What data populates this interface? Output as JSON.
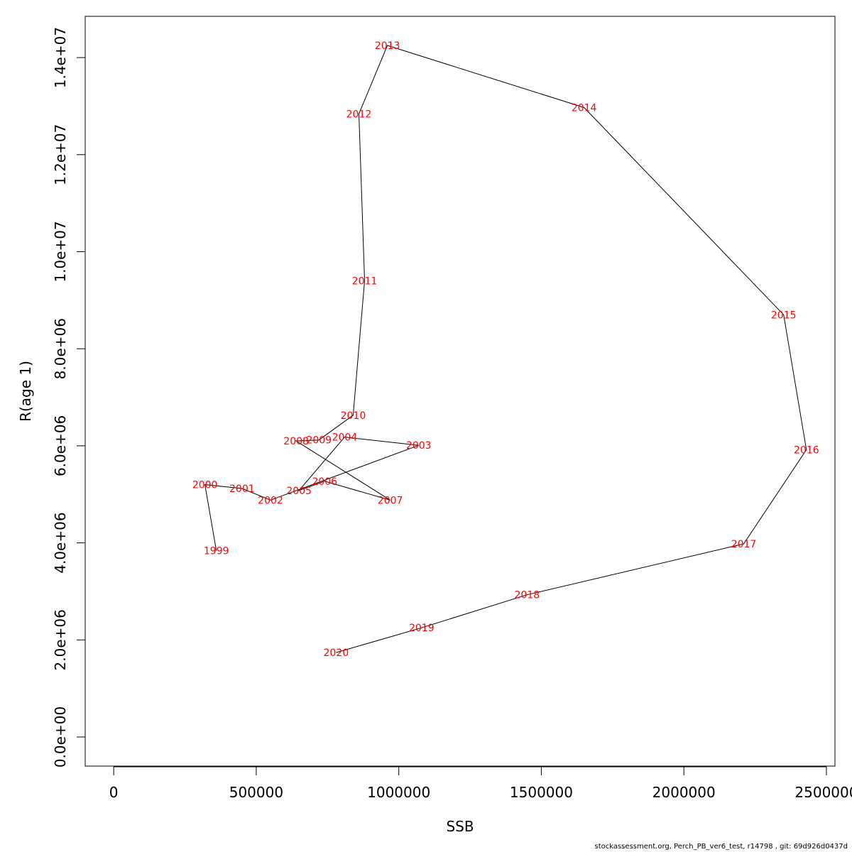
{
  "chart_data": {
    "type": "line",
    "xlabel": "SSB",
    "ylabel": "R(age 1)",
    "xlim": [
      -100000,
      2530000
    ],
    "ylim": [
      -600000,
      14850000
    ],
    "xticks": [
      {
        "value": 0,
        "label": "0"
      },
      {
        "value": 500000,
        "label": "500000"
      },
      {
        "value": 1000000,
        "label": "1000000"
      },
      {
        "value": 1500000,
        "label": "1500000"
      },
      {
        "value": 2000000,
        "label": "2000000"
      },
      {
        "value": 2500000,
        "label": "2500000"
      }
    ],
    "yticks": [
      {
        "value": 0,
        "label": "0.0e+00"
      },
      {
        "value": 2000000,
        "label": "2.0e+06"
      },
      {
        "value": 4000000,
        "label": "4.0e+06"
      },
      {
        "value": 6000000,
        "label": "6.0e+06"
      },
      {
        "value": 8000000,
        "label": "8.0e+06"
      },
      {
        "value": 10000000,
        "label": "1.0e+07"
      },
      {
        "value": 12000000,
        "label": "1.2e+07"
      },
      {
        "value": 14000000,
        "label": "1.4e+07"
      }
    ],
    "grid": false,
    "line_color": "#000000",
    "label_color": "#ff0000",
    "points": [
      {
        "label": "1999",
        "x": 360000,
        "y": 3840000
      },
      {
        "label": "2000",
        "x": 320000,
        "y": 5200000
      },
      {
        "label": "2001",
        "x": 450000,
        "y": 5120000
      },
      {
        "label": "2002",
        "x": 550000,
        "y": 4880000
      },
      {
        "label": "2003",
        "x": 1070000,
        "y": 6010000
      },
      {
        "label": "2004",
        "x": 810000,
        "y": 6180000
      },
      {
        "label": "2005",
        "x": 650000,
        "y": 5080000
      },
      {
        "label": "2006",
        "x": 740000,
        "y": 5270000
      },
      {
        "label": "2007",
        "x": 970000,
        "y": 4880000
      },
      {
        "label": "2008",
        "x": 640000,
        "y": 6100000
      },
      {
        "label": "2009",
        "x": 720000,
        "y": 6120000
      },
      {
        "label": "2010",
        "x": 840000,
        "y": 6630000
      },
      {
        "label": "2011",
        "x": 880000,
        "y": 9400000
      },
      {
        "label": "2012",
        "x": 860000,
        "y": 12840000
      },
      {
        "label": "2013",
        "x": 960000,
        "y": 14250000
      },
      {
        "label": "2014",
        "x": 1650000,
        "y": 12970000
      },
      {
        "label": "2015",
        "x": 2350000,
        "y": 8700000
      },
      {
        "label": "2016",
        "x": 2430000,
        "y": 5920000
      },
      {
        "label": "2017",
        "x": 2210000,
        "y": 3980000
      },
      {
        "label": "2018",
        "x": 1450000,
        "y": 2930000
      },
      {
        "label": "2019",
        "x": 1080000,
        "y": 2250000
      },
      {
        "label": "2020",
        "x": 780000,
        "y": 1740000
      }
    ]
  },
  "footer": "stockassessment.org, Perch_PB_ver6_test, r14798 , git: 69d926d0437d"
}
